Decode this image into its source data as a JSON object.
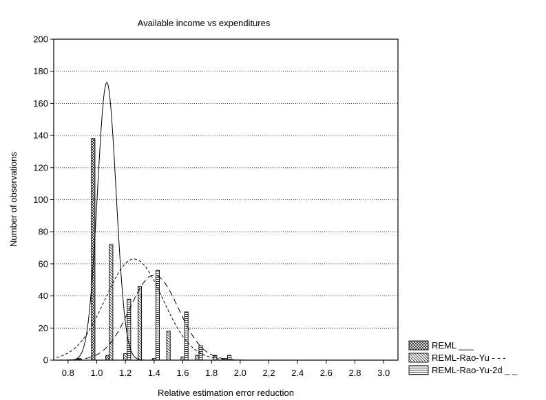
{
  "chart_data": {
    "type": "bar",
    "title": "Available income vs expenditures",
    "xlabel": "Relative estimation error reduction",
    "ylabel": "Number of observations",
    "xlim": [
      0.7,
      3.1
    ],
    "ylim": [
      0,
      200
    ],
    "yticks": [
      0,
      20,
      40,
      60,
      80,
      100,
      120,
      140,
      160,
      180,
      200
    ],
    "yticklabels": [
      "0",
      "20",
      "40",
      "60",
      "80",
      "100",
      "120",
      "140",
      "160",
      "180",
      "200"
    ],
    "xticks": [
      0.8,
      1.0,
      1.2,
      1.4,
      1.6,
      1.8,
      2.0,
      2.2,
      2.4,
      2.6,
      2.8,
      3.0
    ],
    "xticklabels": [
      "0.8",
      "1.0",
      "1.2",
      "1.4",
      "1.6",
      "1.8",
      "2.0",
      "2,2",
      "2.4",
      "2.6",
      "2.8",
      "3.0"
    ],
    "grid": "horizontal dotted",
    "legend_position": "bottom-right outside",
    "bin_centers": [
      0.8,
      0.9,
      1.0,
      1.1,
      1.2,
      1.3,
      1.4,
      1.5,
      1.6,
      1.7,
      1.8,
      1.9,
      2.0,
      2.1,
      2.2,
      2.3,
      2.4,
      2.5,
      2.6,
      2.7,
      2.8,
      2.9,
      3.0
    ],
    "series": [
      {
        "name": "REML ___",
        "pattern": "crosshatch",
        "values": [
          0,
          1,
          138,
          3,
          0,
          0,
          0,
          0,
          0,
          0,
          0,
          0,
          0,
          0,
          0,
          0,
          0,
          0,
          0,
          0,
          0,
          0,
          0
        ],
        "curve": {
          "style": "solid",
          "peak_x": 1.07,
          "peak_y": 173,
          "sd": 0.065
        }
      },
      {
        "name": "REML-Rao-Yu - - -",
        "pattern": "backslash",
        "values": [
          0,
          0,
          0,
          72,
          4,
          46,
          1,
          18,
          2,
          3,
          0,
          1,
          0,
          0,
          0,
          0,
          0,
          0,
          0,
          0,
          0,
          0,
          0
        ],
        "curve": {
          "style": "dashed",
          "peak_x": 1.26,
          "peak_y": 63,
          "sd": 0.2
        }
      },
      {
        "name": "REML-Rao-Yu-2d _ _",
        "pattern": "horizontal",
        "values": [
          0,
          0,
          0,
          0,
          38,
          0,
          56,
          0,
          30,
          9,
          3,
          3,
          0,
          0,
          0,
          0,
          0,
          0,
          0,
          0,
          0,
          0,
          0
        ],
        "curve": {
          "style": "long-dashed",
          "peak_x": 1.4,
          "peak_y": 53,
          "sd": 0.17
        }
      }
    ]
  }
}
